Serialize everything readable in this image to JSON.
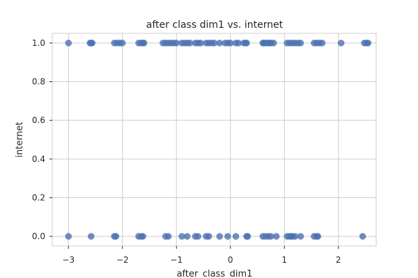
{
  "chart_data": {
    "type": "scatter",
    "title": "after class dim1 vs. internet",
    "xlabel": "after_class_dim1",
    "ylabel": "internet",
    "xlim": [
      -3.3,
      2.7
    ],
    "ylim": [
      -0.05,
      1.05
    ],
    "xticks": [
      -3,
      -2,
      -1,
      0,
      1,
      2
    ],
    "yticks": [
      0.0,
      0.2,
      0.4,
      0.6,
      0.8,
      1.0
    ],
    "xtick_labels": [
      "−3",
      "−2",
      "−1",
      "0",
      "1",
      "2"
    ],
    "ytick_labels": [
      "0.0",
      "0.2",
      "0.4",
      "0.6",
      "0.8",
      "1.0"
    ],
    "grid": true,
    "color": "#4c72b0",
    "series": [
      {
        "x": [
          -3.0,
          -2.6,
          -2.58,
          -2.56,
          -2.15,
          -2.1,
          -2.05,
          -2.0,
          -1.7,
          -1.65,
          -1.62,
          -1.6,
          -1.25,
          -1.2,
          -1.15,
          -1.1,
          -1.05,
          -1.0,
          -0.9,
          -0.85,
          -0.8,
          -0.75,
          -0.65,
          -0.6,
          -0.55,
          -0.45,
          -0.4,
          -0.35,
          -0.3,
          -0.2,
          -0.1,
          -0.05,
          0.0,
          0.1,
          0.15,
          0.25,
          0.28,
          0.3,
          0.6,
          0.62,
          0.65,
          0.7,
          0.72,
          0.75,
          0.8,
          1.05,
          1.1,
          1.15,
          1.2,
          1.25,
          1.3,
          1.55,
          1.6,
          1.65,
          1.7,
          2.05,
          2.48,
          2.52,
          2.55
        ],
        "y": [
          1,
          1,
          1,
          1,
          1,
          1,
          1,
          1,
          1,
          1,
          1,
          1,
          1,
          1,
          1,
          1,
          1,
          1,
          1,
          1,
          1,
          1,
          1,
          1,
          1,
          1,
          1,
          1,
          1,
          1,
          1,
          1,
          1,
          1,
          1,
          1,
          1,
          1,
          1,
          1,
          1,
          1,
          1,
          1,
          1,
          1,
          1,
          1,
          1,
          1,
          1,
          1,
          1,
          1,
          1,
          1,
          1,
          1,
          1
        ]
      },
      {
        "x": [
          -3.0,
          -2.58,
          -2.15,
          -2.12,
          -1.7,
          -1.65,
          -1.62,
          -1.2,
          -1.15,
          -0.9,
          -0.8,
          -0.65,
          -0.6,
          -0.45,
          -0.4,
          -0.2,
          -0.05,
          0.1,
          0.3,
          0.32,
          0.6,
          0.65,
          0.7,
          0.75,
          0.85,
          1.05,
          1.1,
          1.12,
          1.15,
          1.2,
          1.3,
          1.55,
          1.6,
          1.62,
          2.45
        ],
        "y": [
          0,
          0,
          0,
          0,
          0,
          0,
          0,
          0,
          0,
          0,
          0,
          0,
          0,
          0,
          0,
          0,
          0,
          0,
          0,
          0,
          0,
          0,
          0,
          0,
          0,
          0,
          0,
          0,
          0,
          0,
          0,
          0,
          0,
          0,
          0
        ]
      }
    ]
  }
}
